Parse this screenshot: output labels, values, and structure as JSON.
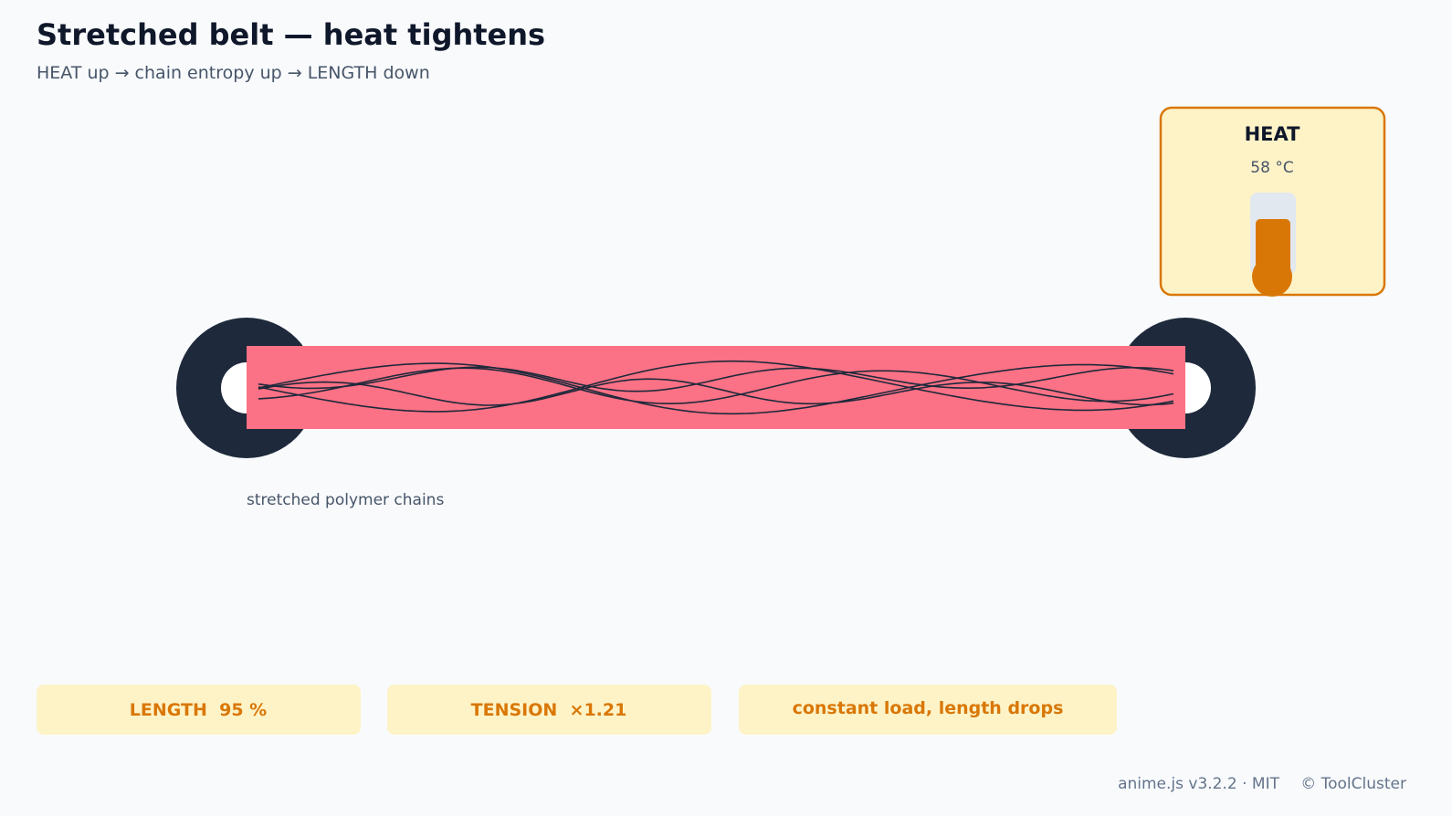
{
  "header": {
    "title": "Stretched belt — heat tightens",
    "subtitle": "HEAT up → chain entropy up → LENGTH down"
  },
  "heat_panel": {
    "label": "HEAT",
    "reading": "58 °C"
  },
  "belt": {
    "caption": "stretched polymer chains"
  },
  "stats": [
    "LENGTH  95 %",
    "TENSION  ×1.21",
    "constant load, length drops"
  ],
  "footer": {
    "version": "anime.js v3.2.2 · MIT",
    "copyright": "© ToolCluster"
  }
}
